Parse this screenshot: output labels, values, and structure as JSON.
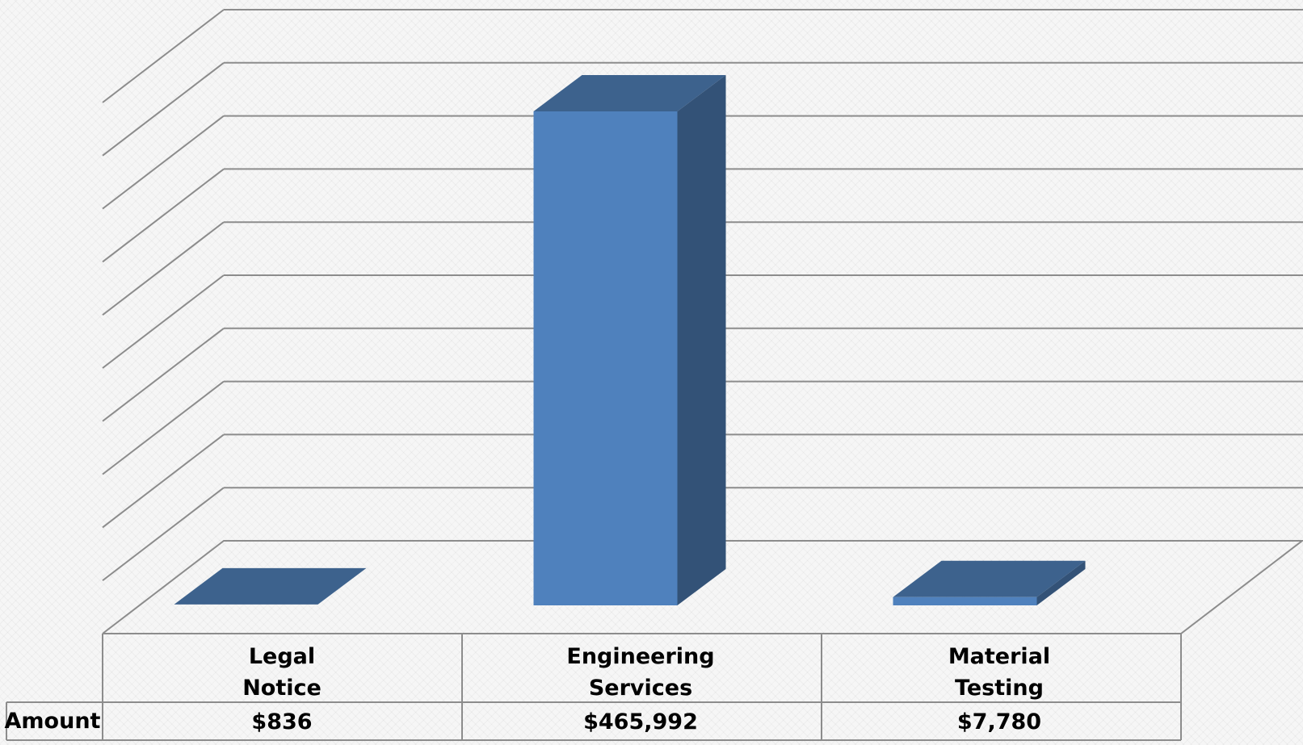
{
  "chart_data": {
    "type": "bar",
    "title": "",
    "xlabel": "",
    "ylabel": "",
    "categories": [
      {
        "line1": "Legal",
        "line2": "Notice"
      },
      {
        "line1": "Engineering",
        "line2": "Services"
      },
      {
        "line1": "Material",
        "line2": "Testing"
      }
    ],
    "series": [
      {
        "name": "Amount",
        "values": [
          836,
          465992,
          7780
        ],
        "labels": [
          "$836",
          "$465,992",
          "$7,780"
        ]
      }
    ],
    "ylim": [
      0,
      500000
    ],
    "grid": true,
    "data_table": true,
    "colors": {
      "front": "#4f81bd",
      "top": "#3d628d",
      "side": "#335277",
      "grid": "#8c8c8c",
      "table_border": "#8c8c8c"
    }
  }
}
